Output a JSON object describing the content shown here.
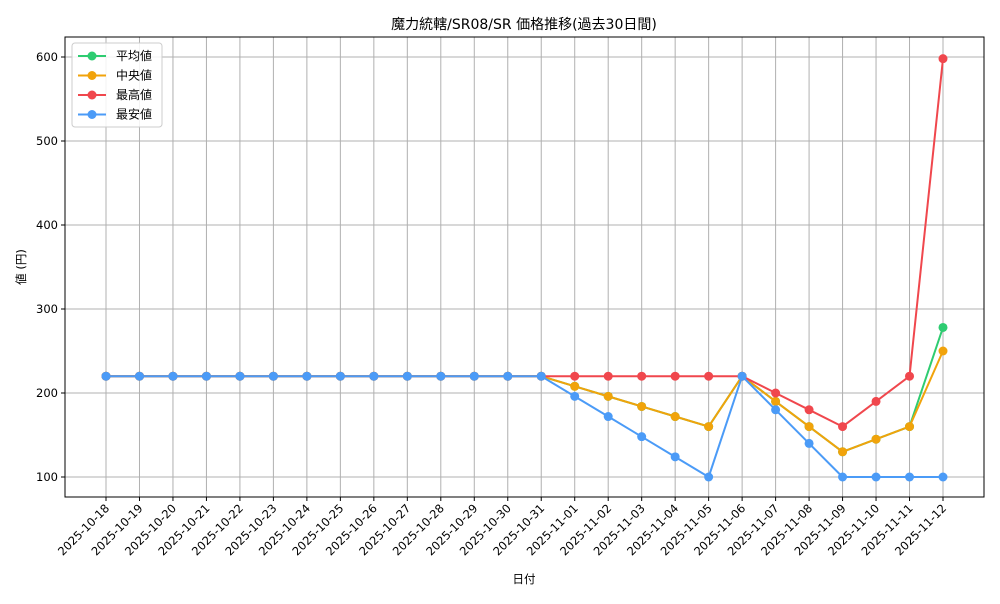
{
  "chart_data": {
    "type": "line",
    "title": "魔力統轄/SR08/SR 価格推移(過去30日間)",
    "xlabel": "日付",
    "ylabel": "値 (円)",
    "ylim": [
      75,
      625
    ],
    "yticks": [
      100,
      200,
      300,
      400,
      500,
      600
    ],
    "grid": true,
    "legend_position": "upper left",
    "categories": [
      "2025-10-18",
      "2025-10-19",
      "2025-10-20",
      "2025-10-21",
      "2025-10-22",
      "2025-10-23",
      "2025-10-24",
      "2025-10-25",
      "2025-10-26",
      "2025-10-27",
      "2025-10-28",
      "2025-10-29",
      "2025-10-30",
      "2025-10-31",
      "2025-11-01",
      "2025-11-02",
      "2025-11-03",
      "2025-11-04",
      "2025-11-05",
      "2025-11-06",
      "2025-11-07",
      "2025-11-08",
      "2025-11-09",
      "2025-11-10",
      "2025-11-11",
      "2025-11-12"
    ],
    "series": [
      {
        "name": "平均値",
        "color": "#2ecc71",
        "values": [
          220,
          220,
          220,
          220,
          220,
          220,
          220,
          220,
          220,
          220,
          220,
          220,
          220,
          220,
          208,
          196,
          184,
          172,
          160,
          220,
          190,
          160,
          130,
          145,
          160,
          278
        ]
      },
      {
        "name": "中央値",
        "color": "#f1a30b",
        "values": [
          220,
          220,
          220,
          220,
          220,
          220,
          220,
          220,
          220,
          220,
          220,
          220,
          220,
          220,
          208,
          196,
          184,
          172,
          160,
          220,
          190,
          160,
          130,
          145,
          160,
          250
        ]
      },
      {
        "name": "最高値",
        "color": "#f0474d",
        "values": [
          220,
          220,
          220,
          220,
          220,
          220,
          220,
          220,
          220,
          220,
          220,
          220,
          220,
          220,
          220,
          220,
          220,
          220,
          220,
          220,
          200,
          180,
          160,
          190,
          220,
          598
        ]
      },
      {
        "name": "最安値",
        "color": "#4b9bf7",
        "values": [
          220,
          220,
          220,
          220,
          220,
          220,
          220,
          220,
          220,
          220,
          220,
          220,
          220,
          220,
          196,
          172,
          148,
          124,
          100,
          220,
          180,
          140,
          100,
          100,
          100,
          100
        ]
      }
    ]
  },
  "legend": {
    "items": [
      {
        "label": "平均値",
        "color": "#2ecc71"
      },
      {
        "label": "中央値",
        "color": "#f1a30b"
      },
      {
        "label": "最高値",
        "color": "#f0474d"
      },
      {
        "label": "最安値",
        "color": "#4b9bf7"
      }
    ]
  }
}
